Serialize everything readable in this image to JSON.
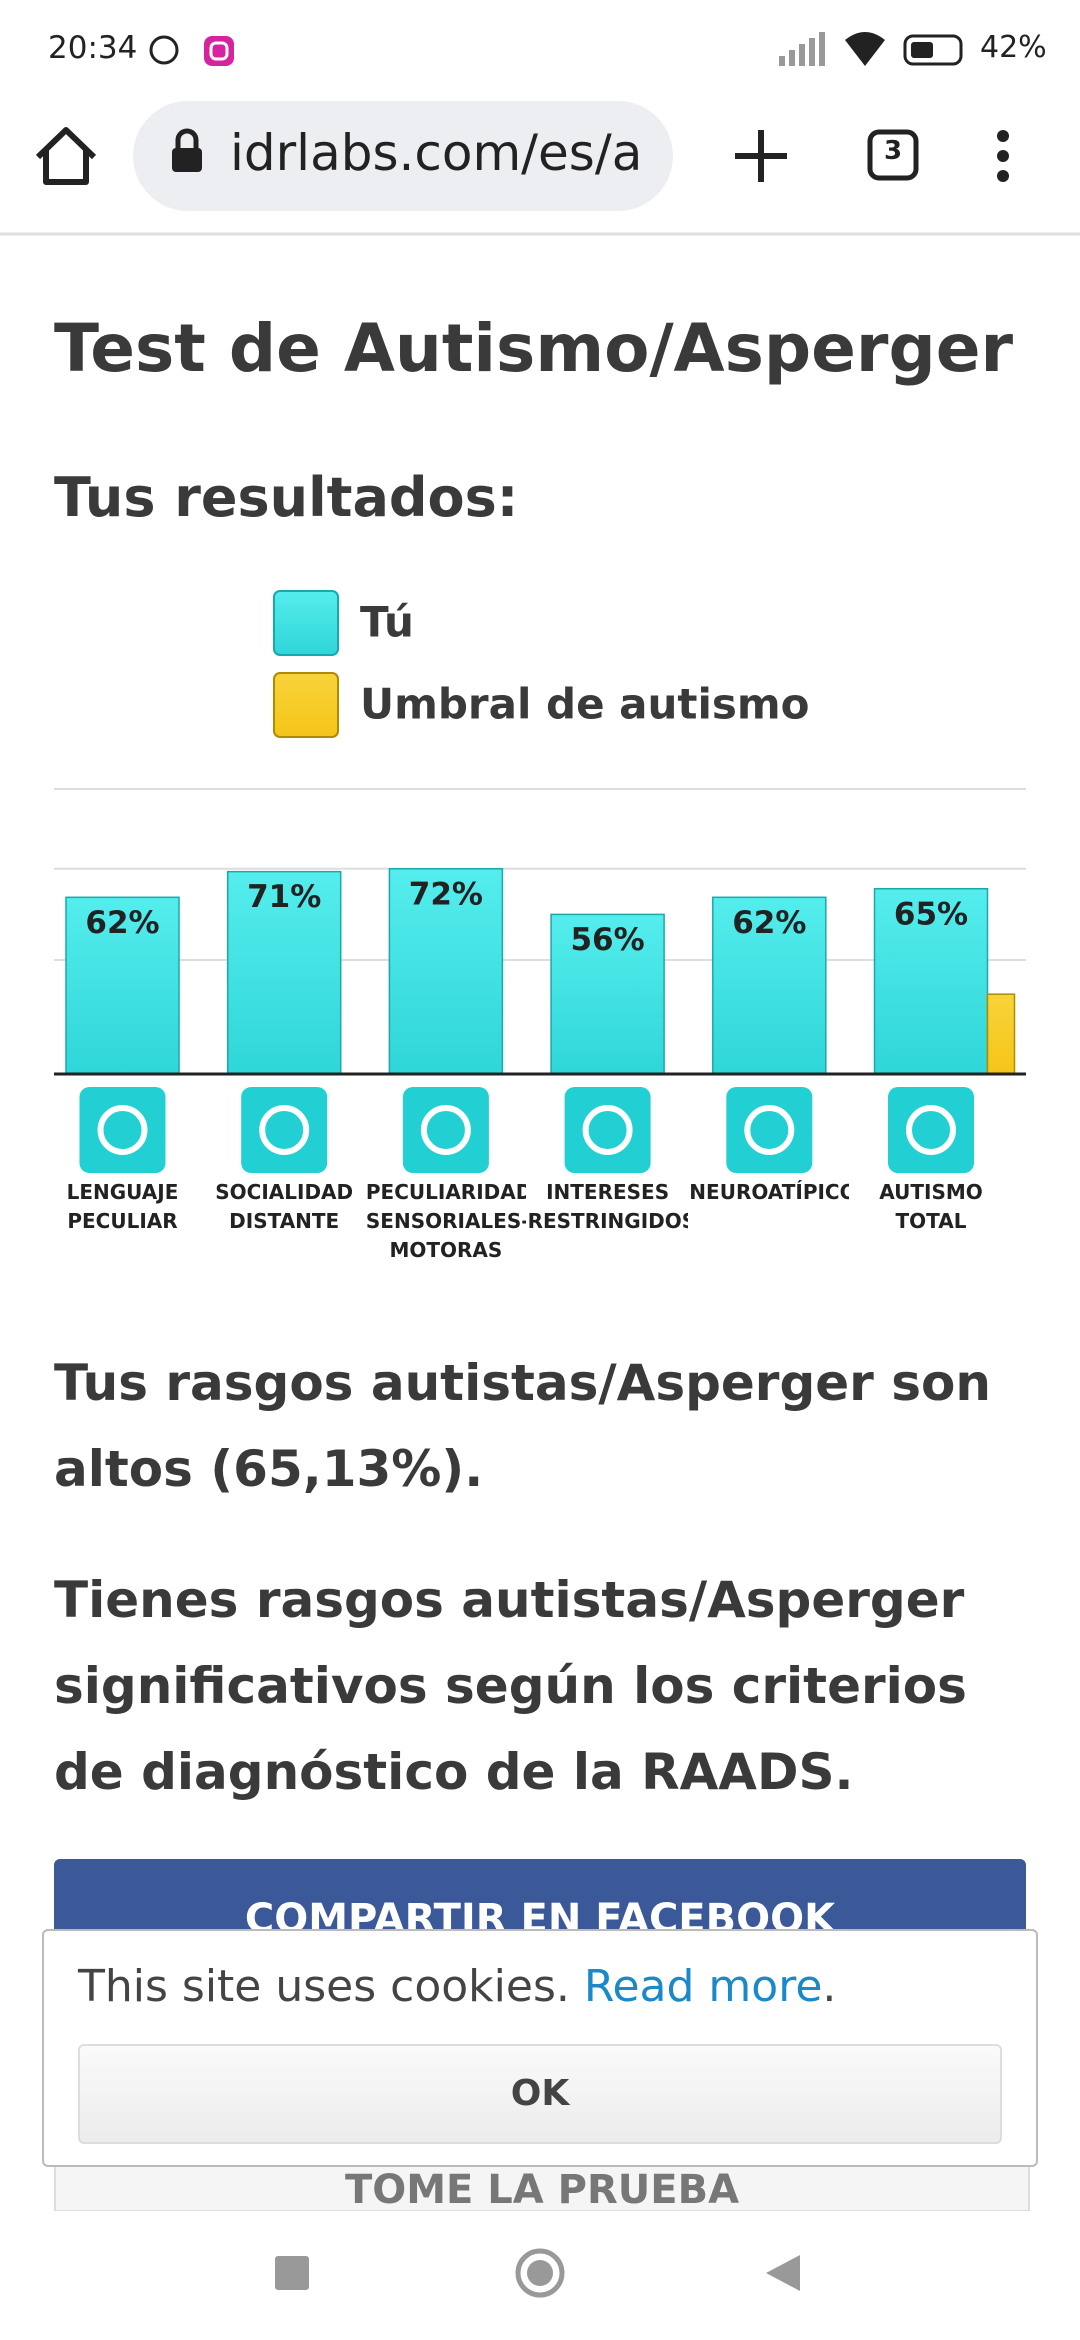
{
  "status_bar": {
    "time": "20:34",
    "battery": "42%"
  },
  "browser": {
    "url": "idrlabs.com/es/a",
    "tab_count": "3"
  },
  "page": {
    "title": "Test de Autismo/Asperger",
    "subtitle": "Tus resultados:",
    "paragraphs": [
      "Tus rasgos autistas/Asperger son altos (65,13%).",
      "Tienes rasgos autistas/Asperger significativos según los criterios de diagnóstico de la RAADS."
    ],
    "buttons": [
      "COMPARTIR EN FACEBOOK",
      "TOME LA PRUEBA"
    ]
  },
  "chart_data": {
    "type": "bar",
    "categories": [
      "LENGUAJE PECULIAR",
      "SOCIALIDAD DISTANTE",
      "PECULIARIDADES SENSORIALES-MOTORAS",
      "INTERESES RESTRINGIDOS",
      "NEUROATÍPICO",
      "AUTISMO TOTAL"
    ],
    "series": [
      {
        "name": "Tú",
        "color": "#2fd6d8",
        "values": [
          62,
          71,
          72,
          56,
          62,
          65
        ],
        "value_labels": [
          "62%",
          "71%",
          "72%",
          "56%",
          "62%",
          "65%"
        ]
      },
      {
        "name": "Umbral de autismo",
        "color": "#f5c518",
        "values": [
          null,
          null,
          null,
          null,
          null,
          28
        ]
      }
    ],
    "ylim": [
      0,
      100
    ],
    "yticks": [
      40,
      72,
      100
    ],
    "grid": true
  },
  "cookie_banner": {
    "text": "This site uses cookies.",
    "link": "Read more",
    "end": ".",
    "button": "OK"
  }
}
